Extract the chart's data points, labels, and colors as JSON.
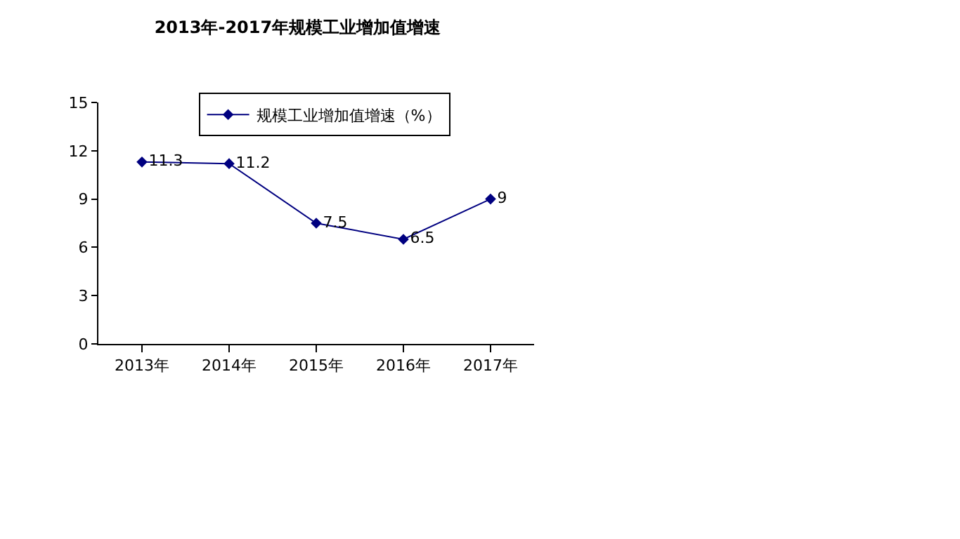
{
  "chart_data": {
    "type": "line",
    "title": "2013年-2017年规模工业增加值增速",
    "categories": [
      "2013年",
      "2014年",
      "2015年",
      "2016年",
      "2017年"
    ],
    "series": [
      {
        "name": "规模工业增加值增速（%）",
        "color": "#000080",
        "values": [
          11.3,
          11.2,
          7.5,
          6.5,
          9
        ]
      }
    ],
    "ylim": [
      0,
      15
    ],
    "yticks": [
      0,
      3,
      6,
      9,
      12,
      15
    ],
    "grid": false,
    "legend": "top",
    "marker": "diamond",
    "line_style": "solid",
    "data_labels": true
  }
}
